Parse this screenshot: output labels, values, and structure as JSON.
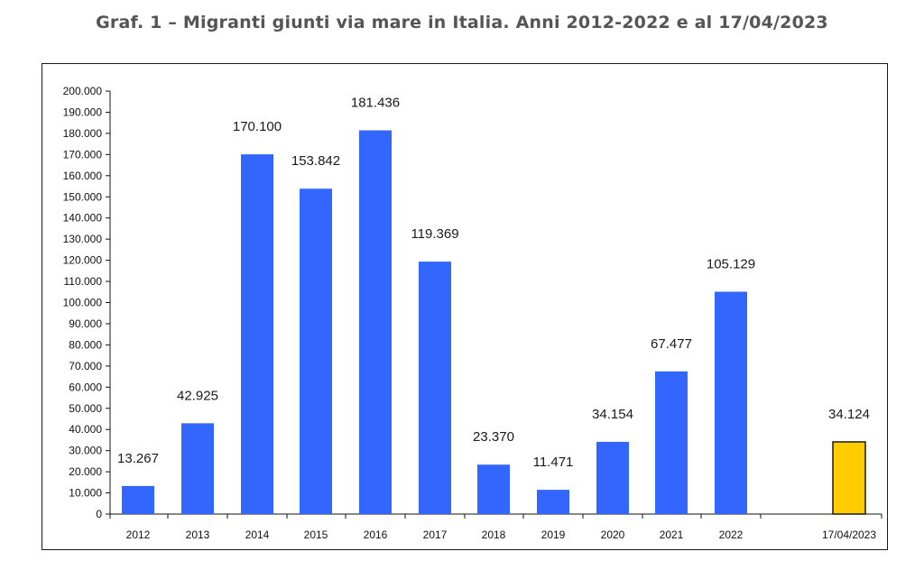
{
  "title": "Graf. 1 – Migranti giunti via mare in Italia. Anni 2012-2022 e al 17/04/2023",
  "chart_data": {
    "type": "bar",
    "categories": [
      "2012",
      "2013",
      "2014",
      "2015",
      "2016",
      "2017",
      "2018",
      "2019",
      "2020",
      "2021",
      "2022",
      "17/04/2023"
    ],
    "values": [
      13267,
      42925,
      170100,
      153842,
      181436,
      119369,
      23370,
      11471,
      34154,
      67477,
      105129,
      34124
    ],
    "value_labels": [
      "13.267",
      "42.925",
      "170.100",
      "153.842",
      "181.436",
      "119.369",
      "23.370",
      "11.471",
      "34.154",
      "67.477",
      "105.129",
      "34.124"
    ],
    "ylim": [
      0,
      200000
    ],
    "yticks": [
      0,
      10000,
      20000,
      30000,
      40000,
      50000,
      60000,
      70000,
      80000,
      90000,
      100000,
      110000,
      120000,
      130000,
      140000,
      150000,
      160000,
      170000,
      180000,
      190000,
      200000
    ],
    "ytick_labels": [
      "0",
      "10.000",
      "20.000",
      "30.000",
      "40.000",
      "50.000",
      "60.000",
      "70.000",
      "80.000",
      "90.000",
      "100.000",
      "110.000",
      "120.000",
      "130.000",
      "140.000",
      "150.000",
      "160.000",
      "170.000",
      "180.000",
      "190.000",
      "200.000"
    ],
    "grid": false,
    "colors": {
      "bar": "#3366FF",
      "highlight_bar": "#FFCC00",
      "highlight_label": "#3333CC"
    }
  }
}
